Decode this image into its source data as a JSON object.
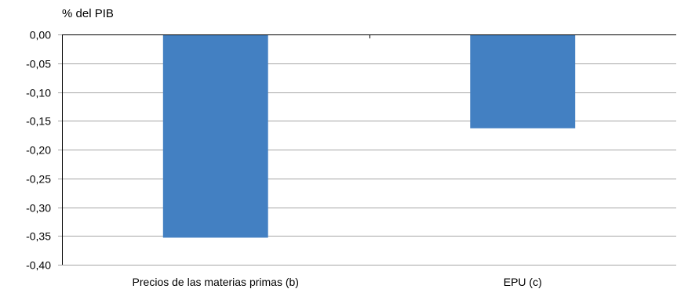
{
  "chart_data": {
    "type": "bar",
    "title": "",
    "ylabel": "% del PIB",
    "xlabel": "",
    "categories": [
      "Precios de las materias primas (b)",
      "EPU (c)"
    ],
    "values": [
      -0.353,
      -0.163
    ],
    "ylim": [
      -0.4,
      0.0
    ],
    "yticks": [
      0.0,
      -0.05,
      -0.1,
      -0.15,
      -0.2,
      -0.25,
      -0.3,
      -0.35,
      -0.4
    ],
    "ytick_labels": [
      "0,00",
      "-0,05",
      "-0,10",
      "-0,15",
      "-0,20",
      "-0,25",
      "-0,30",
      "-0,35",
      "-0,40"
    ],
    "grid": true,
    "bar_color": "#4380c2",
    "grid_color": "#a6a6a6"
  }
}
